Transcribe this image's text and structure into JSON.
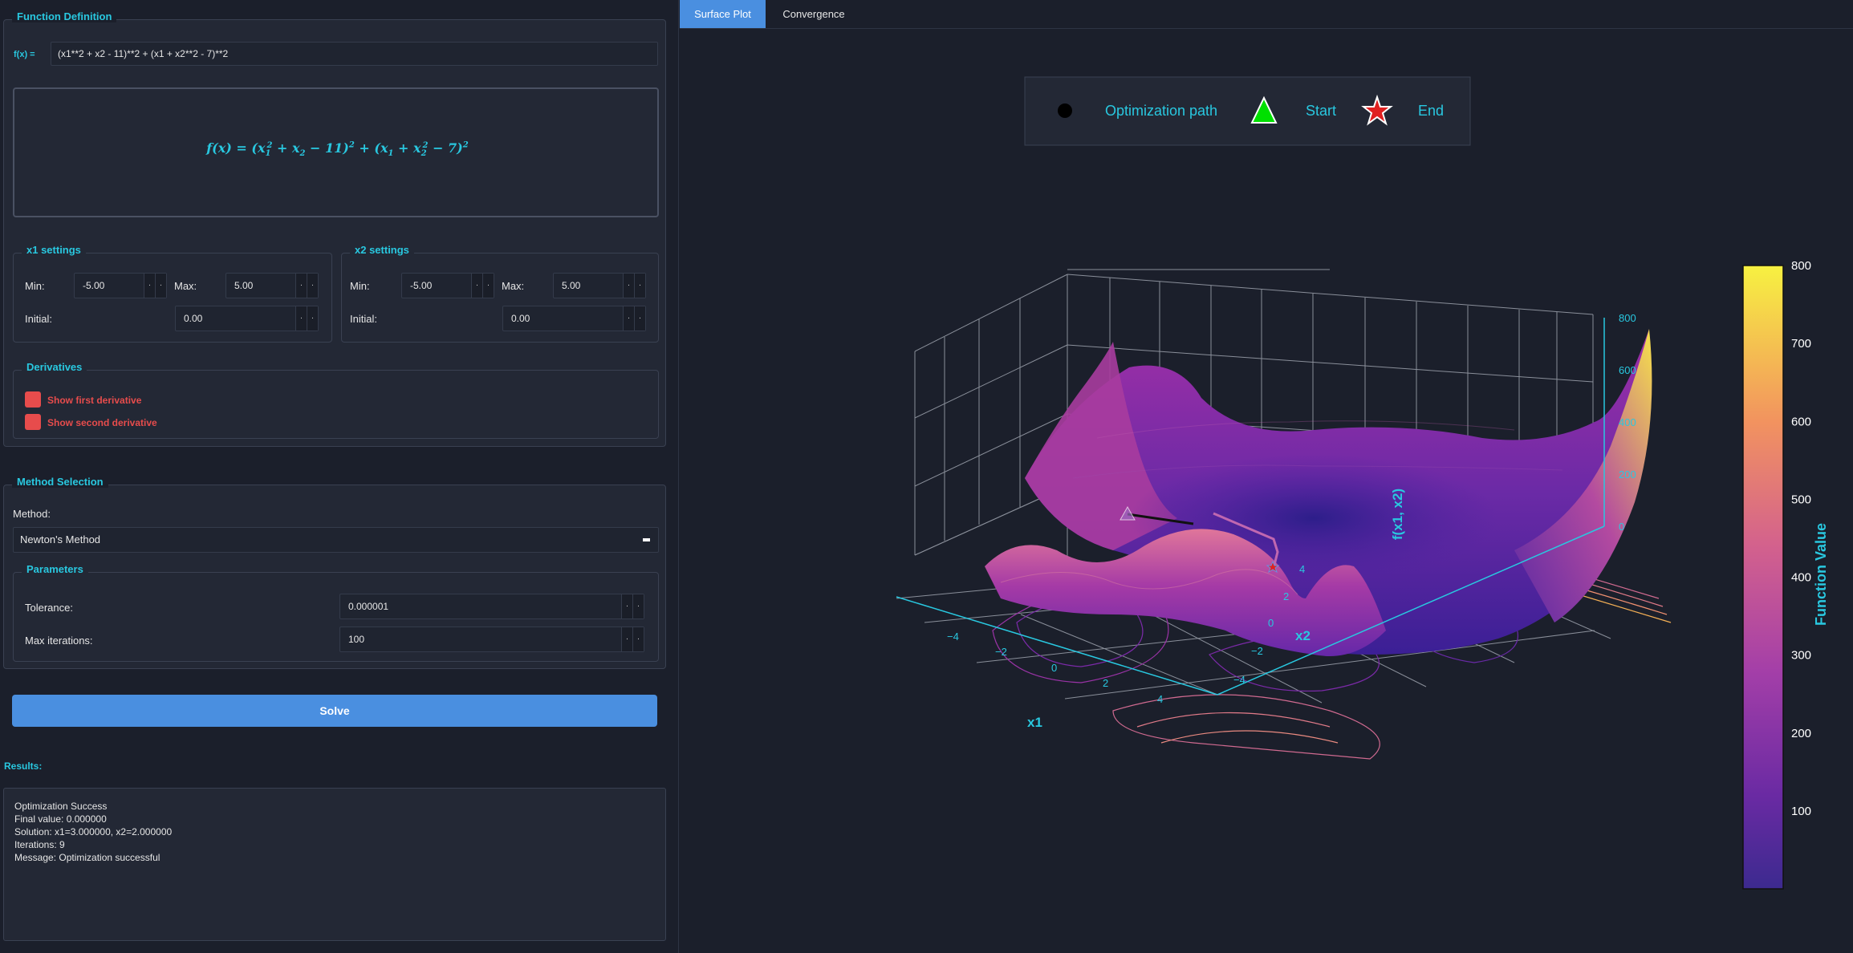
{
  "function_definition": {
    "title": "Function Definition",
    "fx_label": "f(x) =",
    "expression": "(x1**2 + x2 - 11)**2 + (x1 + x2**2 - 7)**2",
    "rendered_lhs": "f(x) = ",
    "rendered_rhs_parts": [
      "(x",
      "1",
      "2",
      " + x",
      "2",
      " − 11)",
      "2",
      " + (x",
      "1",
      " + x",
      "2",
      "2",
      " − 7)",
      "2"
    ]
  },
  "x1_settings": {
    "title": "x1 settings",
    "min_label": "Min:",
    "min_value": "-5.00",
    "max_label": "Max:",
    "max_value": "5.00",
    "initial_label": "Initial:",
    "initial_value": "0.00"
  },
  "x2_settings": {
    "title": "x2 settings",
    "min_label": "Min:",
    "min_value": "-5.00",
    "max_label": "Max:",
    "max_value": "5.00",
    "initial_label": "Initial:",
    "initial_value": "0.00"
  },
  "derivatives": {
    "title": "Derivatives",
    "first_label": "Show first derivative",
    "second_label": "Show second derivative"
  },
  "method_selection": {
    "title": "Method Selection",
    "method_label": "Method:",
    "method_value": "Newton's Method",
    "parameters_title": "Parameters",
    "tolerance_label": "Tolerance:",
    "tolerance_value": "0.000001",
    "max_iter_label": "Max iterations:",
    "max_iter_value": "100"
  },
  "solve_label": "Solve",
  "results": {
    "title": "Results:",
    "lines": [
      "Optimization Success",
      "Final value: 0.000000",
      "Solution: x1=3.000000, x2=2.000000",
      "Iterations: 9",
      "Message: Optimization successful"
    ]
  },
  "tabs": [
    {
      "label": "Surface Plot",
      "active": true
    },
    {
      "label": "Convergence",
      "active": false
    }
  ],
  "plot": {
    "legend": {
      "path_label": "Optimization path",
      "start_label": "Start",
      "end_label": "End"
    },
    "axes": {
      "x_label": "x1",
      "y_label": "x2",
      "z_label": "f(x1, x2)",
      "x_ticks": [
        "−4",
        "−2",
        "0",
        "2",
        "4"
      ],
      "y_ticks": [
        "−4",
        "−2",
        "0",
        "2",
        "4"
      ],
      "z_ticks": [
        "0",
        "200",
        "400",
        "600",
        "800"
      ]
    },
    "colorbar": {
      "title": "Function Value",
      "ticks": [
        "100",
        "200",
        "300",
        "400",
        "500",
        "600",
        "700",
        "800"
      ]
    },
    "colors": {
      "accent": "#29c8e0",
      "tab_active": "#4a8fe0",
      "checkbox": "#e74c4c",
      "start_marker": "#00e000",
      "end_marker": "#e02020"
    }
  },
  "chart_data": {
    "type": "surface",
    "function": "(x1**2 + x2 - 11)**2 + (x1 + x2**2 - 7)**2",
    "x_range": [
      -5,
      5
    ],
    "y_range": [
      -5,
      5
    ],
    "z_range": [
      0,
      800
    ],
    "colorscale": "plasma",
    "path": {
      "start": [
        0,
        0
      ],
      "end": [
        3,
        2
      ]
    }
  }
}
